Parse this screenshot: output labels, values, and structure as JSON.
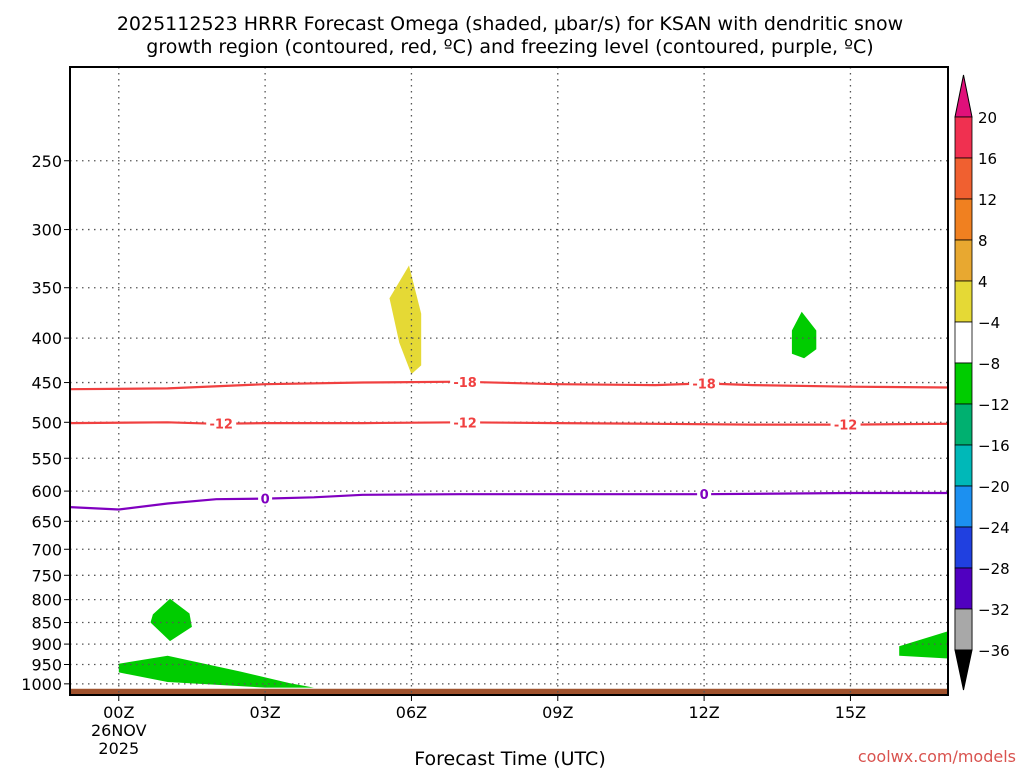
{
  "title_lines": [
    "2025112523 HRRR Forecast Omega (shaded, μbar/s) for KSAN with dendritic snow",
    "growth region (contoured, red, ºC) and freezing level (contoured, purple, ºC)"
  ],
  "credit": "coolwx.com/models",
  "chart_data": {
    "type": "heatmap",
    "xlabel": "Forecast Time (UTC)",
    "ylabel": "",
    "x_unit": "forecast hour",
    "xlim": [
      -1,
      17
    ],
    "y_unit": "hPa",
    "y_scale": "log",
    "ylim": [
      1030,
      195
    ],
    "grid": true,
    "x_ticks": [
      {
        "hour": 0,
        "label": "00Z",
        "sub": [
          "26NOV",
          "2025"
        ]
      },
      {
        "hour": 3,
        "label": "03Z",
        "sub": []
      },
      {
        "hour": 6,
        "label": "06Z",
        "sub": []
      },
      {
        "hour": 9,
        "label": "09Z",
        "sub": []
      },
      {
        "hour": 12,
        "label": "12Z",
        "sub": []
      },
      {
        "hour": 15,
        "label": "15Z",
        "sub": []
      }
    ],
    "y_ticks": [
      250,
      300,
      350,
      400,
      450,
      500,
      550,
      600,
      650,
      700,
      750,
      800,
      850,
      900,
      950,
      1000
    ],
    "shaded_regions": [
      {
        "color": "#e5d935",
        "range": [
          4,
          8
        ],
        "points": [
          [
            5.55,
            360
          ],
          [
            5.95,
            330
          ],
          [
            6.2,
            375
          ],
          [
            6.2,
            430
          ],
          [
            6.0,
            440
          ],
          [
            5.75,
            405
          ]
        ]
      },
      {
        "color": "#00cc00",
        "range": [
          -8,
          -4
        ],
        "points": [
          [
            13.8,
            392
          ],
          [
            14.0,
            373
          ],
          [
            14.3,
            392
          ],
          [
            14.3,
            412
          ],
          [
            14.05,
            422
          ],
          [
            13.8,
            417
          ]
        ]
      },
      {
        "color": "#00cc00",
        "range": [
          -8,
          -4
        ],
        "points": [
          [
            0.7,
            832
          ],
          [
            1.05,
            798
          ],
          [
            1.45,
            830
          ],
          [
            1.5,
            860
          ],
          [
            1.05,
            893
          ],
          [
            0.65,
            850
          ]
        ]
      },
      {
        "color": "#00cc00",
        "range": [
          -8,
          -4
        ],
        "points": [
          [
            0,
            948
          ],
          [
            1.0,
            928
          ],
          [
            2.5,
            968
          ],
          [
            3.5,
            998
          ],
          [
            4.0,
            1010
          ],
          [
            3.0,
            1010
          ],
          [
            1.0,
            995
          ],
          [
            0,
            970
          ]
        ]
      },
      {
        "color": "#00cc00",
        "range": [
          -8,
          -4
        ],
        "points": [
          [
            16.0,
            905
          ],
          [
            17.0,
            870
          ],
          [
            17.0,
            935
          ],
          [
            16.0,
            928
          ]
        ]
      },
      {
        "color": "#a0522d",
        "range": null,
        "points": [
          [
            -1,
            1013
          ],
          [
            17,
            1013
          ],
          [
            17,
            1030
          ],
          [
            -1,
            1030
          ]
        ]
      }
    ],
    "contours": [
      {
        "name": "dendritic -18",
        "color": "#f04040",
        "value": -18,
        "label": "-18",
        "label_at": [
          7.1,
          12.0
        ],
        "points": [
          [
            -1,
            458
          ],
          [
            1,
            457
          ],
          [
            3,
            452
          ],
          [
            5,
            450
          ],
          [
            7,
            449
          ],
          [
            9,
            452
          ],
          [
            11,
            453
          ],
          [
            12,
            451
          ],
          [
            13,
            453
          ],
          [
            15,
            455
          ],
          [
            17,
            456
          ]
        ]
      },
      {
        "name": "dendritic -12",
        "color": "#f04040",
        "value": -12,
        "label": "-12",
        "label_at": [
          2.1,
          7.1,
          14.9
        ],
        "points": [
          [
            -1,
            501
          ],
          [
            1,
            500
          ],
          [
            2,
            502
          ],
          [
            3,
            501
          ],
          [
            5,
            501
          ],
          [
            7,
            500
          ],
          [
            9,
            501
          ],
          [
            11,
            502
          ],
          [
            13,
            503
          ],
          [
            15,
            503
          ],
          [
            17,
            502
          ]
        ]
      },
      {
        "name": "freezing level 0",
        "color": "#8000c0",
        "value": 0,
        "label": "0",
        "label_at": [
          3.0,
          12.0
        ],
        "points": [
          [
            -1,
            626
          ],
          [
            0,
            630
          ],
          [
            1,
            620
          ],
          [
            2,
            613
          ],
          [
            3,
            612
          ],
          [
            4,
            610
          ],
          [
            5,
            606
          ],
          [
            7,
            605
          ],
          [
            9,
            605
          ],
          [
            12,
            605
          ],
          [
            15,
            603
          ],
          [
            17,
            603
          ]
        ]
      }
    ],
    "colorbar": {
      "unit": "μbar/s",
      "levels": [
        "20",
        "16",
        "12",
        "8",
        "4",
        "−4",
        "−8",
        "−12",
        "−16",
        "−20",
        "−24",
        "−28",
        "−32",
        "−36"
      ],
      "colors": [
        "#f03050",
        "#f06030",
        "#f08020",
        "#e8a830",
        "#e5d935",
        "#ffffff",
        "#00cc00",
        "#00b070",
        "#00b8b8",
        "#1c90f0",
        "#2040e0",
        "#5000c0",
        "#9800c0",
        "#a8a8a8"
      ],
      "top_arrow_color": "#e0107a",
      "bottom_arrow_color": "#000000"
    }
  }
}
